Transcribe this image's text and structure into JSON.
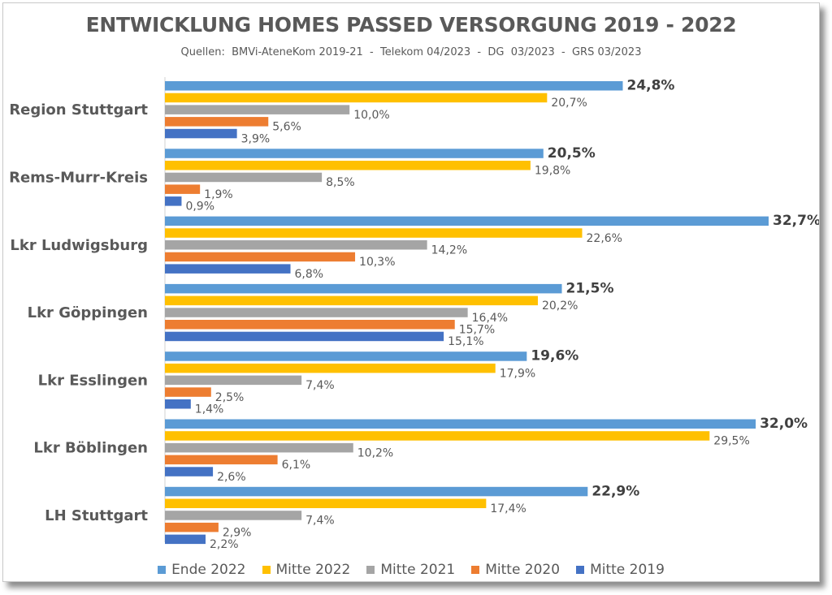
{
  "chart_data": {
    "type": "bar",
    "orientation": "horizontal",
    "title": "ENTWICKLUNG HOMES PASSED VERSORGUNG 2019 - 2022",
    "subtitle": "Quellen:  BMVi-AteneKom 2019-21  -  Telekom 04/2023  -  DG  03/2023  -  GRS 03/2023",
    "categories": [
      "Region Stuttgart",
      "Rems-Murr-Kreis",
      "Lkr Ludwigsburg",
      "Lkr Göppingen",
      "Lkr Esslingen",
      "Lkr Böblingen",
      "LH Stuttgart"
    ],
    "series": [
      {
        "name": "Ende 2022",
        "color": "#5b9bd5",
        "values": [
          24.8,
          20.5,
          32.7,
          21.5,
          19.6,
          32.0,
          22.9
        ],
        "labels": [
          "24,8%",
          "20,5%",
          "32,7%",
          "21,5%",
          "19,6%",
          "32,0%",
          "22,9%"
        ]
      },
      {
        "name": "Mitte 2022",
        "color": "#ffc000",
        "values": [
          20.7,
          19.8,
          22.6,
          20.2,
          17.9,
          29.5,
          17.4
        ],
        "labels": [
          "20,7%",
          "19,8%",
          "22,6%",
          "20,2%",
          "17,9%",
          "29,5%",
          "17,4%"
        ]
      },
      {
        "name": "Mitte 2021",
        "color": "#a5a5a5",
        "values": [
          10.0,
          8.5,
          14.2,
          16.4,
          7.4,
          10.2,
          7.4
        ],
        "labels": [
          "10,0%",
          "8,5%",
          "14,2%",
          "16,4%",
          "7,4%",
          "10,2%",
          "7,4%"
        ]
      },
      {
        "name": "Mitte 2020",
        "color": "#ed7d31",
        "values": [
          5.6,
          1.9,
          10.3,
          15.7,
          2.5,
          6.1,
          2.9
        ],
        "labels": [
          "5,6%",
          "1,9%",
          "10,3%",
          "15,7%",
          "2,5%",
          "6,1%",
          "2,9%"
        ]
      },
      {
        "name": "Mitte 2019",
        "color": "#4472c4",
        "values": [
          3.9,
          0.9,
          6.8,
          15.1,
          1.4,
          2.6,
          2.2
        ],
        "labels": [
          "3,9%",
          "0,9%",
          "6,8%",
          "15,1%",
          "1,4%",
          "2,6%",
          "2,2%"
        ]
      }
    ],
    "xlim": [
      0,
      33
    ],
    "grid": false,
    "legend": "bottom"
  }
}
